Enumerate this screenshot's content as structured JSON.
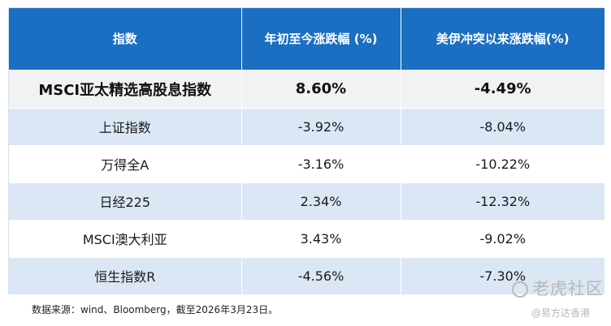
{
  "chart_data": {
    "type": "table",
    "columns": [
      "指数",
      "年初至今涨跌幅 (%)",
      "美伊冲突以来涨跌幅(%)"
    ],
    "rows": [
      {
        "name": "MSCI亚太精选高股息指数",
        "ytd": "8.60%",
        "since_conflict": "-4.49%"
      },
      {
        "name": "上证指数",
        "ytd": "-3.92%",
        "since_conflict": "-8.04%"
      },
      {
        "name": "万得全A",
        "ytd": "-3.16%",
        "since_conflict": "-10.22%"
      },
      {
        "name": "日经225",
        "ytd": "2.34%",
        "since_conflict": "-12.32%"
      },
      {
        "name": "MSCI澳大利亚",
        "ytd": "3.43%",
        "since_conflict": "-9.02%"
      },
      {
        "name": "恒生指数R",
        "ytd": "-4.56%",
        "since_conflict": "-7.30%"
      }
    ]
  },
  "source_note": "数据来源：wind、Bloomberg，截至2026年3月23日。",
  "watermark": {
    "logo_text": "老虎社区",
    "handle": "@易方达香港"
  },
  "colors": {
    "header_bg": "#1a6fc2",
    "row_blue": "#dbe7f5",
    "highlight_bg": "#f1f2f4"
  }
}
